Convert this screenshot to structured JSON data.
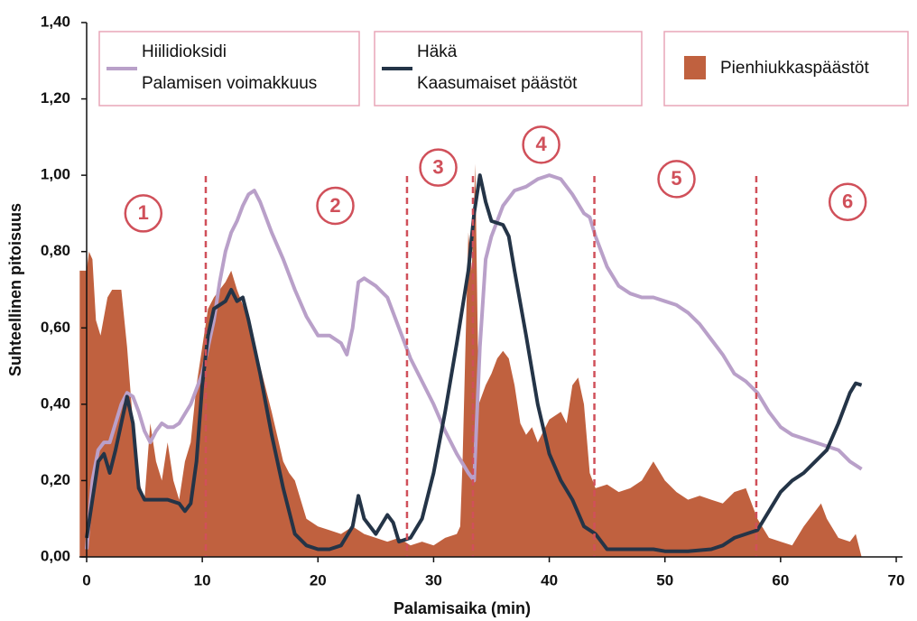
{
  "chart_data": {
    "type": "line",
    "x_label": "Palamisaika (min)",
    "y_label": "Suhteellinen pitoisuus",
    "xlim": [
      0,
      70
    ],
    "ylim": [
      0,
      1.4
    ],
    "xticks": [
      0,
      10,
      20,
      30,
      40,
      50,
      60,
      70
    ],
    "yticks": [
      {
        "value": 0,
        "label": "0,00"
      },
      {
        "value": 0.2,
        "label": "0,20"
      },
      {
        "value": 0.4,
        "label": "0,40"
      },
      {
        "value": 0.6,
        "label": "0,60"
      },
      {
        "value": 0.8,
        "label": "0,80"
      },
      {
        "value": 1.0,
        "label": "1,00"
      },
      {
        "value": 1.2,
        "label": "1,20"
      },
      {
        "value": 1.4,
        "label": "1,40"
      }
    ],
    "dividers": [
      10.3,
      27.7,
      33.4,
      43.9,
      57.9
    ],
    "phases": [
      {
        "label": "1",
        "x": 4.9,
        "y": 0.9
      },
      {
        "label": "2",
        "x": 21.5,
        "y": 0.92
      },
      {
        "label": "3",
        "x": 30.4,
        "y": 1.02
      },
      {
        "label": "4",
        "x": 39.3,
        "y": 1.08
      },
      {
        "label": "5",
        "x": 51,
        "y": 0.99
      },
      {
        "label": "6",
        "x": 65.8,
        "y": 0.93
      }
    ],
    "series": [
      {
        "name": "Hiilidioksidi",
        "subtitle": "Palamisen voimakkuus",
        "kind": "line",
        "color": "#b9a0c9",
        "x": [
          0,
          0.5,
          1,
          1.5,
          2,
          2.5,
          3,
          3.5,
          4,
          4.5,
          5,
          5.5,
          6,
          6.5,
          7,
          7.5,
          8,
          9,
          10,
          11,
          11.5,
          12,
          12.5,
          13,
          13.5,
          14,
          14.5,
          15,
          16,
          17,
          18,
          19,
          20,
          21,
          22,
          22.5,
          23,
          23.5,
          24,
          25,
          26,
          27,
          28,
          29,
          30,
          31,
          32,
          33,
          33.5,
          34,
          34.5,
          35,
          36,
          37,
          38,
          39,
          40,
          41,
          42,
          43,
          43.5,
          44,
          45,
          46,
          47,
          48,
          49,
          50,
          51,
          52,
          53,
          54,
          55,
          56,
          57,
          58,
          59,
          60,
          61,
          62,
          63,
          64,
          65,
          66,
          67
        ],
        "values": [
          0.02,
          0.2,
          0.28,
          0.3,
          0.3,
          0.35,
          0.4,
          0.43,
          0.42,
          0.38,
          0.33,
          0.3,
          0.33,
          0.35,
          0.34,
          0.34,
          0.35,
          0.4,
          0.48,
          0.62,
          0.72,
          0.8,
          0.85,
          0.88,
          0.92,
          0.95,
          0.96,
          0.93,
          0.85,
          0.78,
          0.7,
          0.63,
          0.58,
          0.58,
          0.56,
          0.53,
          0.6,
          0.72,
          0.73,
          0.71,
          0.68,
          0.6,
          0.52,
          0.46,
          0.4,
          0.33,
          0.27,
          0.22,
          0.2,
          0.55,
          0.78,
          0.84,
          0.92,
          0.96,
          0.97,
          0.99,
          1.0,
          0.99,
          0.95,
          0.9,
          0.89,
          0.84,
          0.76,
          0.71,
          0.69,
          0.68,
          0.68,
          0.67,
          0.66,
          0.64,
          0.61,
          0.57,
          0.53,
          0.48,
          0.46,
          0.43,
          0.38,
          0.34,
          0.32,
          0.31,
          0.3,
          0.29,
          0.28,
          0.25,
          0.23
        ]
      },
      {
        "name": "Häkä",
        "subtitle": "Kaasumaiset päästöt",
        "kind": "line",
        "color": "#243447",
        "x": [
          0,
          0.5,
          1,
          1.5,
          2,
          2.5,
          3,
          3.5,
          4,
          4.5,
          5,
          6,
          7,
          8,
          8.5,
          9,
          9.5,
          10,
          10.5,
          11,
          12,
          12.5,
          13,
          13.5,
          14,
          15,
          16,
          17,
          18,
          19,
          20,
          21,
          22,
          23,
          23.5,
          24,
          25,
          26,
          26.5,
          27,
          28,
          29,
          30,
          31,
          32,
          33,
          33.5,
          34,
          34.5,
          35,
          36,
          36.5,
          37,
          38,
          39,
          40,
          41,
          42,
          43,
          44,
          45,
          46,
          48,
          49,
          50,
          52,
          54,
          55,
          56,
          57,
          58,
          59,
          60,
          61,
          62,
          63,
          64,
          65,
          66,
          66.5,
          67
        ],
        "values": [
          0.05,
          0.15,
          0.25,
          0.27,
          0.22,
          0.28,
          0.35,
          0.42,
          0.35,
          0.18,
          0.15,
          0.15,
          0.15,
          0.14,
          0.12,
          0.14,
          0.25,
          0.45,
          0.58,
          0.65,
          0.67,
          0.7,
          0.67,
          0.68,
          0.62,
          0.48,
          0.32,
          0.18,
          0.06,
          0.03,
          0.02,
          0.02,
          0.03,
          0.08,
          0.16,
          0.1,
          0.06,
          0.11,
          0.09,
          0.04,
          0.05,
          0.1,
          0.22,
          0.38,
          0.56,
          0.75,
          0.9,
          1.0,
          0.93,
          0.88,
          0.87,
          0.84,
          0.75,
          0.58,
          0.4,
          0.27,
          0.2,
          0.15,
          0.08,
          0.06,
          0.02,
          0.02,
          0.02,
          0.02,
          0.015,
          0.015,
          0.02,
          0.03,
          0.05,
          0.06,
          0.07,
          0.12,
          0.17,
          0.2,
          0.22,
          0.25,
          0.28,
          0.35,
          0.43,
          0.455,
          0.45
        ]
      },
      {
        "name": "Pienhiukkaspäästöt",
        "kind": "area",
        "color": "#c0613f",
        "x": [
          -0.6,
          -0.6,
          0,
          0.2,
          0.5,
          0.8,
          1.2,
          1.8,
          2.2,
          3,
          3.5,
          4,
          4.5,
          5,
          5.5,
          6,
          6.5,
          7,
          7.5,
          8,
          8.5,
          9,
          9.5,
          10,
          10.5,
          11,
          11.5,
          12,
          12.5,
          13,
          14,
          15,
          16,
          17,
          17.5,
          18,
          18.5,
          19,
          20,
          21,
          22,
          23,
          24,
          25,
          26,
          27,
          28,
          29,
          30,
          31,
          32,
          32.3,
          32.5,
          33,
          33.3,
          33.6,
          33.9,
          34.5,
          35,
          35.5,
          36,
          36.5,
          37,
          37.5,
          38,
          38.5,
          39,
          39.5,
          40,
          41,
          41.5,
          42,
          42.5,
          43,
          43.5,
          44,
          45,
          46,
          47,
          48,
          49,
          50,
          51,
          52,
          53,
          54,
          55,
          56,
          57,
          58,
          59,
          60,
          61,
          62,
          63,
          63.5,
          64,
          65,
          66,
          66.5,
          67
        ],
        "values": [
          0,
          0.75,
          0.75,
          0.8,
          0.78,
          0.62,
          0.58,
          0.68,
          0.7,
          0.7,
          0.55,
          0.35,
          0.2,
          0.15,
          0.35,
          0.25,
          0.2,
          0.3,
          0.2,
          0.15,
          0.25,
          0.3,
          0.45,
          0.55,
          0.65,
          0.68,
          0.7,
          0.72,
          0.75,
          0.7,
          0.62,
          0.5,
          0.38,
          0.25,
          0.22,
          0.2,
          0.15,
          0.1,
          0.08,
          0.07,
          0.06,
          0.08,
          0.06,
          0.05,
          0.04,
          0.05,
          0.03,
          0.04,
          0.03,
          0.05,
          0.06,
          0.08,
          0.25,
          0.85,
          0.75,
          1.03,
          0.4,
          0.45,
          0.48,
          0.52,
          0.54,
          0.52,
          0.45,
          0.35,
          0.32,
          0.34,
          0.3,
          0.33,
          0.36,
          0.38,
          0.35,
          0.45,
          0.47,
          0.4,
          0.22,
          0.18,
          0.19,
          0.17,
          0.18,
          0.2,
          0.25,
          0.2,
          0.17,
          0.15,
          0.16,
          0.15,
          0.14,
          0.17,
          0.18,
          0.1,
          0.05,
          0.04,
          0.03,
          0.08,
          0.12,
          0.14,
          0.1,
          0.05,
          0.04,
          0.06,
          0
        ]
      }
    ]
  }
}
